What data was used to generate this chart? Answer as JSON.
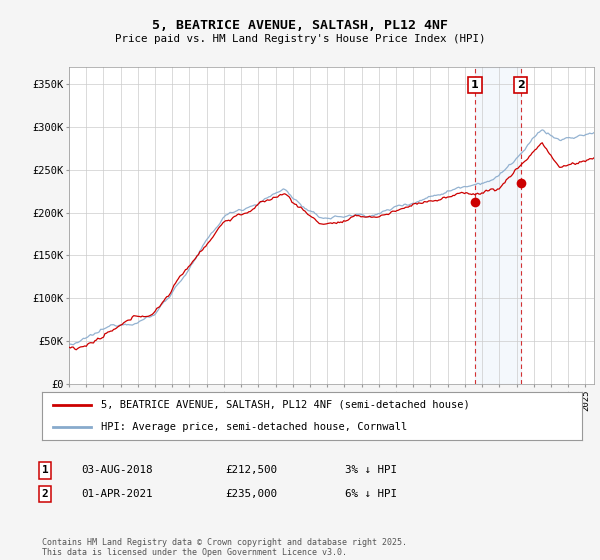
{
  "title": "5, BEATRICE AVENUE, SALTASH, PL12 4NF",
  "subtitle": "Price paid vs. HM Land Registry's House Price Index (HPI)",
  "ylabel_ticks": [
    "£0",
    "£50K",
    "£100K",
    "£150K",
    "£200K",
    "£250K",
    "£300K",
    "£350K"
  ],
  "ytick_values": [
    0,
    50000,
    100000,
    150000,
    200000,
    250000,
    300000,
    350000
  ],
  "ylim": [
    0,
    370000
  ],
  "xlim_start": 1995.0,
  "xlim_end": 2025.5,
  "bg_color": "#f5f5f5",
  "plot_bg": "#ffffff",
  "grid_color": "#cccccc",
  "line1_color": "#cc0000",
  "line2_color": "#88aacc",
  "legend1": "5, BEATRICE AVENUE, SALTASH, PL12 4NF (semi-detached house)",
  "legend2": "HPI: Average price, semi-detached house, Cornwall",
  "pt1_x": 2018.58,
  "pt1_y": 212500,
  "pt2_x": 2021.25,
  "pt2_y": 235000,
  "table_row1": [
    "1",
    "03-AUG-2018",
    "£212,500",
    "3% ↓ HPI"
  ],
  "table_row2": [
    "2",
    "01-APR-2021",
    "£235,000",
    "6% ↓ HPI"
  ],
  "footer": "Contains HM Land Registry data © Crown copyright and database right 2025.\nThis data is licensed under the Open Government Licence v3.0."
}
